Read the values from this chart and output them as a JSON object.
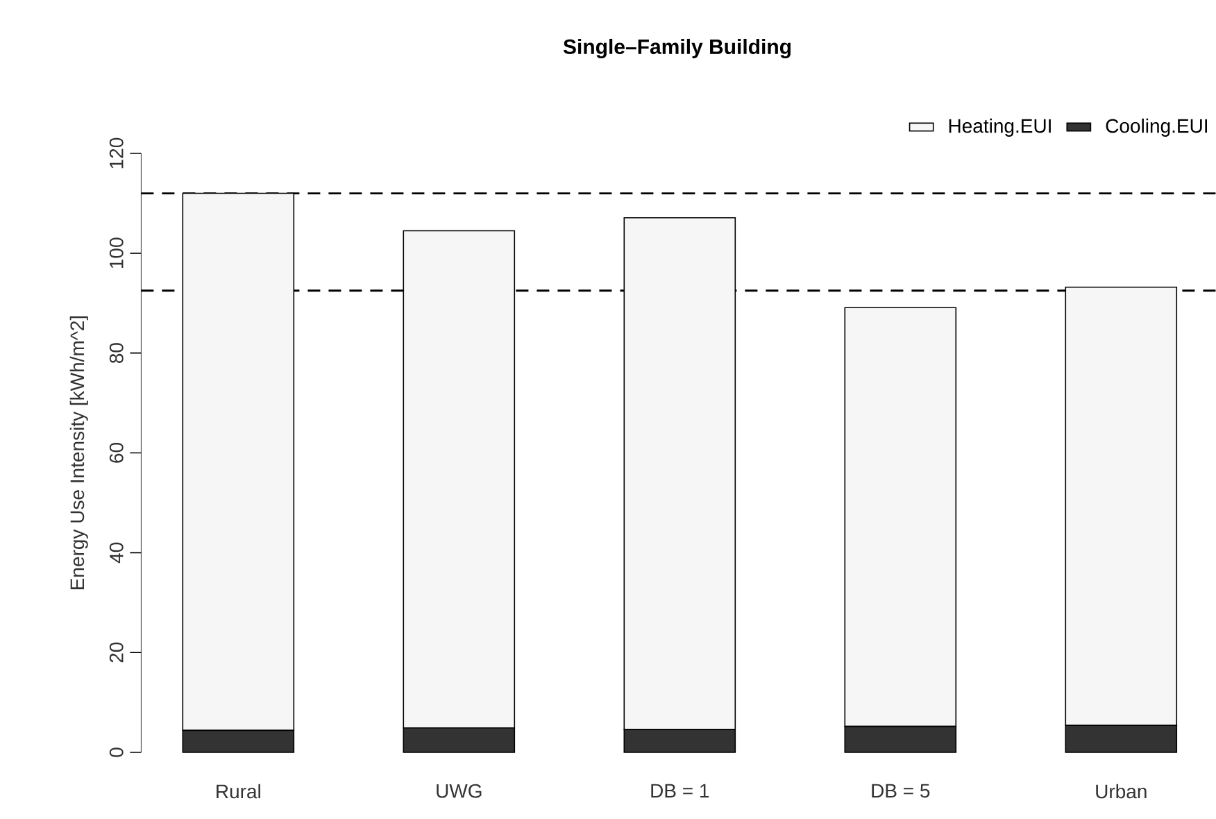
{
  "chart_data": {
    "type": "bar",
    "title": "Single–Family Building",
    "ylabel": "Energy Use Intensity [kWh/m^2]",
    "categories": [
      "Rural",
      "UWG",
      "DB = 1",
      "DB = 5",
      "Urban"
    ],
    "stacked": true,
    "series": [
      {
        "name": "Cooling.EUI",
        "color": "#333333",
        "values": [
          4.4,
          4.9,
          4.6,
          5.2,
          5.4
        ]
      },
      {
        "name": "Heating.EUI",
        "color": "#f6f6f6",
        "values": [
          107.6,
          99.6,
          102.5,
          83.9,
          87.8
        ]
      }
    ],
    "ylim": [
      0,
      120
    ],
    "yticks": [
      0,
      20,
      40,
      60,
      80,
      100,
      120
    ],
    "ref_lines": [
      {
        "axis": "y",
        "value": 112,
        "line_style": "dashed"
      },
      {
        "axis": "y",
        "value": 92.5,
        "line_style": "dashed"
      }
    ],
    "legend": "top right"
  }
}
